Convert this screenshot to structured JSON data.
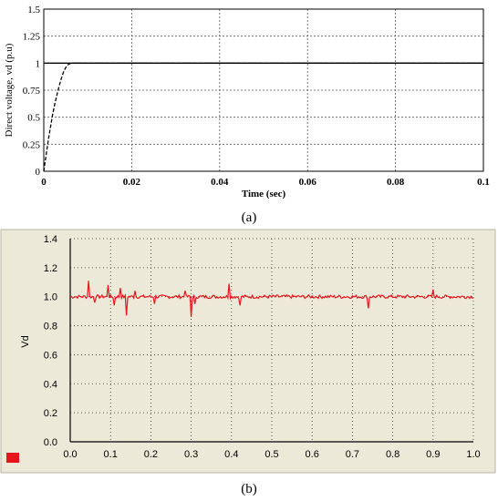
{
  "chart_data": [
    {
      "type": "line",
      "panel_label": "(a)",
      "xlabel": "Time (sec)",
      "ylabel": "Direct voltage, vd (p.u)",
      "xlim": [
        0,
        0.1
      ],
      "ylim": [
        0,
        1.5
      ],
      "x_ticks": [
        "0",
        "0.02",
        "0.04",
        "0.06",
        "0.08",
        "0.1"
      ],
      "y_ticks": [
        "0",
        "0.25",
        "0.5",
        "0.75",
        "1",
        "1.25",
        "1.5"
      ],
      "grid": true,
      "reference_line": 1,
      "series": [
        {
          "line_style": "dashed",
          "color": "#000000",
          "x": [
            0,
            0.0005,
            0.001,
            0.0015,
            0.002,
            0.0025,
            0.003,
            0.0035,
            0.004,
            0.0045,
            0.005,
            0.0055,
            0.006,
            0.0065,
            0.007,
            0.008,
            0.01,
            0.02,
            0.04,
            0.06,
            0.08,
            0.1
          ],
          "y": [
            0,
            0.14,
            0.28,
            0.4,
            0.52,
            0.62,
            0.71,
            0.79,
            0.86,
            0.92,
            0.96,
            0.985,
            0.997,
            1.0,
            1.0,
            1.0,
            1.0,
            1.0,
            1.0,
            1.0,
            1.0,
            1.0
          ]
        }
      ]
    },
    {
      "type": "line",
      "panel_label": "(b)",
      "xlabel": "",
      "ylabel": "Vd",
      "xlim": [
        0,
        1.0
      ],
      "ylim": [
        0,
        1.4
      ],
      "x_ticks": [
        "0.0",
        "0.1",
        "0.2",
        "0.3",
        "0.4",
        "0.5",
        "0.6",
        "0.7",
        "0.8",
        "0.9",
        "1.0"
      ],
      "y_ticks": [
        "0.0",
        "0.2",
        "0.4",
        "0.6",
        "0.8",
        "1.0",
        "1.2",
        "1.4"
      ],
      "grid": true,
      "background": "#ece9d8",
      "series": [
        {
          "color": "#e8141c",
          "baseline": 1.0,
          "noise_amplitude": 0.012,
          "spikes": [
            {
              "x": 0.045,
              "y": 1.11
            },
            {
              "x": 0.06,
              "y": 0.96
            },
            {
              "x": 0.095,
              "y": 1.08
            },
            {
              "x": 0.11,
              "y": 0.94
            },
            {
              "x": 0.125,
              "y": 1.06
            },
            {
              "x": 0.14,
              "y": 0.87
            },
            {
              "x": 0.16,
              "y": 1.04
            },
            {
              "x": 0.21,
              "y": 0.95
            },
            {
              "x": 0.285,
              "y": 1.04
            },
            {
              "x": 0.3,
              "y": 0.86
            },
            {
              "x": 0.31,
              "y": 0.95
            },
            {
              "x": 0.395,
              "y": 1.09
            },
            {
              "x": 0.42,
              "y": 0.94
            },
            {
              "x": 0.74,
              "y": 0.92
            },
            {
              "x": 0.9,
              "y": 1.05
            }
          ]
        }
      ],
      "legend_color": "#e8141c"
    }
  ]
}
